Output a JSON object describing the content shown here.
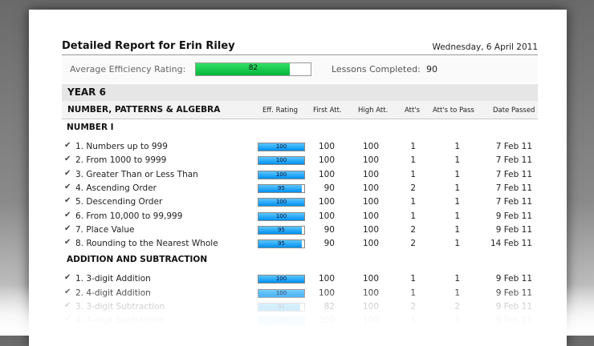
{
  "report": {
    "title": "Detailed Report for Erin Riley",
    "date": "Wednesday, 6 April 2011"
  },
  "summary": {
    "efficiency_label": "Average Efficiency Rating:",
    "efficiency_value": 82,
    "lessons_label": "Lessons Completed:",
    "lessons_value": "90",
    "bar_color": "#00c040"
  },
  "year": "YEAR 6",
  "section": {
    "title": "NUMBER, PATTERNS & ALGEBRA",
    "columns": [
      "Eff. Rating",
      "First Att.",
      "High Att.",
      "Att's",
      "Att's to Pass",
      "Date Passed"
    ]
  },
  "groups": [
    {
      "title": "NUMBER I",
      "rows": [
        {
          "name": "1. Numbers up to 999",
          "eff": 100,
          "first": "100",
          "high": "100",
          "atts": "1",
          "pass": "1",
          "date": "7 Feb 11"
        },
        {
          "name": "2. From 1000 to 9999",
          "eff": 100,
          "first": "100",
          "high": "100",
          "atts": "1",
          "pass": "1",
          "date": "7 Feb 11"
        },
        {
          "name": "3. Greater Than or Less Than",
          "eff": 100,
          "first": "100",
          "high": "100",
          "atts": "1",
          "pass": "1",
          "date": "7 Feb 11"
        },
        {
          "name": "4. Ascending Order",
          "eff": 95,
          "first": "90",
          "high": "100",
          "atts": "2",
          "pass": "1",
          "date": "7 Feb 11"
        },
        {
          "name": "5. Descending Order",
          "eff": 100,
          "first": "100",
          "high": "100",
          "atts": "1",
          "pass": "1",
          "date": "7 Feb 11"
        },
        {
          "name": "6. From 10,000 to 99,999",
          "eff": 100,
          "first": "100",
          "high": "100",
          "atts": "1",
          "pass": "1",
          "date": "9 Feb 11"
        },
        {
          "name": "7. Place Value",
          "eff": 95,
          "first": "90",
          "high": "100",
          "atts": "2",
          "pass": "1",
          "date": "9 Feb 11"
        },
        {
          "name": "8. Rounding to the Nearest Whole",
          "eff": 95,
          "first": "90",
          "high": "100",
          "atts": "2",
          "pass": "1",
          "date": "14 Feb 11"
        }
      ]
    },
    {
      "title": "ADDITION AND SUBTRACTION",
      "rows": [
        {
          "name": "1. 3-digit Addition",
          "eff": 100,
          "first": "100",
          "high": "100",
          "atts": "1",
          "pass": "1",
          "date": "9 Feb 11"
        },
        {
          "name": "2. 4-digit Addition",
          "eff": 100,
          "first": "100",
          "high": "100",
          "atts": "1",
          "pass": "1",
          "date": "9 Feb 11"
        },
        {
          "name": "3. 3-digit Subtraction",
          "eff": 91,
          "first": "82",
          "high": "100",
          "atts": "2",
          "pass": "2",
          "date": "9 Feb 11"
        },
        {
          "name": "4. 4-digit Subtraction",
          "eff": 100,
          "first": "100",
          "high": "100",
          "atts": "1",
          "pass": "1",
          "date": "9 Feb 11"
        }
      ]
    }
  ]
}
